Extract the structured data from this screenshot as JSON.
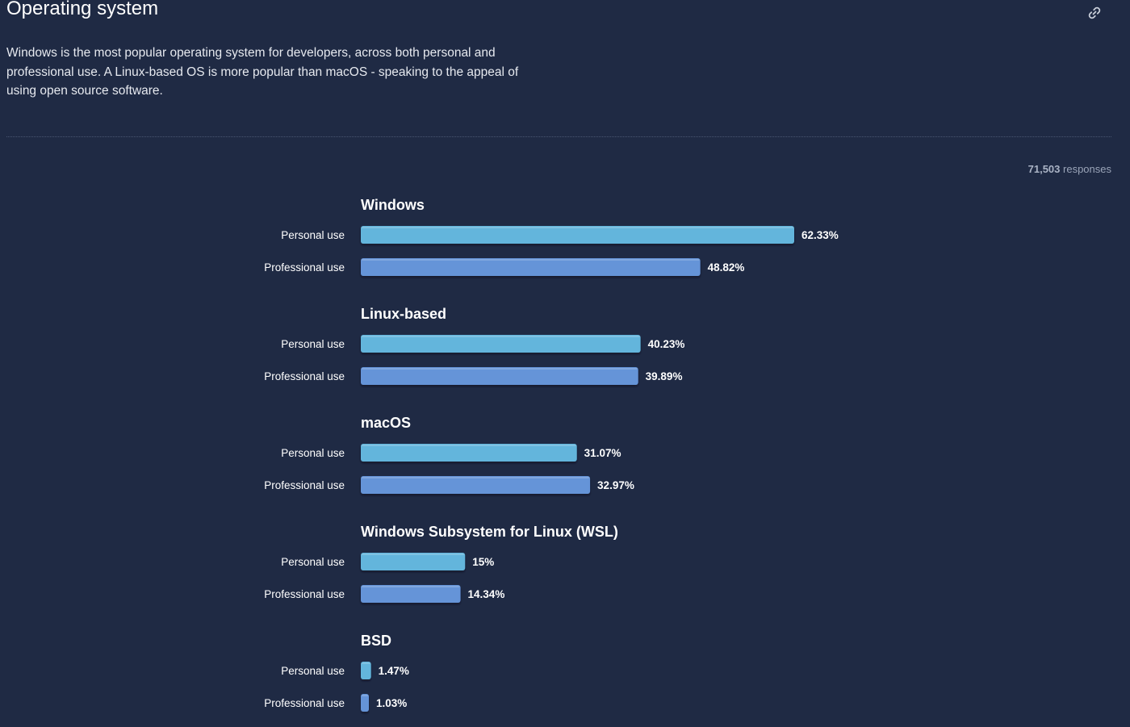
{
  "header": {
    "title": "Operating system",
    "description": "Windows is the most popular operating system for developers, across both personal and professional use. A Linux-based OS is more popular than macOS - speaking to the appeal of using open source software.",
    "link_icon": "link-icon"
  },
  "responses": {
    "count": "71,503",
    "label": "responses"
  },
  "colors": {
    "background": "#1f2a44",
    "personal": "#64b5dc",
    "professional": "#6594d8"
  },
  "chart_data": {
    "type": "bar",
    "orientation": "horizontal",
    "xlim": [
      0,
      62.33
    ],
    "grid": false,
    "series_names": [
      "Personal use",
      "Professional use"
    ],
    "groups": [
      {
        "name": "Windows",
        "values": [
          62.33,
          48.82
        ],
        "labels": [
          "62.33%",
          "48.82%"
        ]
      },
      {
        "name": "Linux-based",
        "values": [
          40.23,
          39.89
        ],
        "labels": [
          "40.23%",
          "39.89%"
        ]
      },
      {
        "name": "macOS",
        "values": [
          31.07,
          32.97
        ],
        "labels": [
          "31.07%",
          "32.97%"
        ]
      },
      {
        "name": "Windows Subsystem for Linux (WSL)",
        "values": [
          15,
          14.34
        ],
        "labels": [
          "15%",
          "14.34%"
        ]
      },
      {
        "name": "BSD",
        "values": [
          1.47,
          1.03
        ],
        "labels": [
          "1.47%",
          "1.03%"
        ]
      }
    ]
  }
}
